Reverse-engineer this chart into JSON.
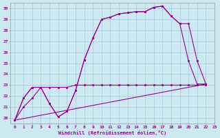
{
  "xlabel": "Windchill (Refroidissement éolien,°C)",
  "xlim": [
    -0.5,
    23
  ],
  "ylim": [
    19.5,
    30.5
  ],
  "xticks": [
    0,
    1,
    2,
    3,
    4,
    5,
    6,
    7,
    8,
    9,
    10,
    11,
    12,
    13,
    14,
    15,
    16,
    17,
    18,
    19,
    20,
    21,
    22,
    23
  ],
  "yticks": [
    20,
    21,
    22,
    23,
    24,
    25,
    26,
    27,
    28,
    29,
    30
  ],
  "background_color": "#cce8f0",
  "grid_color": "#aac8d8",
  "line_color": "#990099",
  "curve1_x": [
    0,
    1,
    2,
    3,
    4,
    5,
    6,
    7,
    8,
    9,
    10,
    11,
    12,
    13,
    14,
    15,
    16,
    17,
    18,
    19,
    20,
    21,
    22
  ],
  "curve1_y": [
    19.8,
    21.8,
    22.8,
    22.8,
    21.3,
    20.1,
    20.6,
    22.5,
    25.3,
    27.3,
    29.0,
    29.2,
    29.5,
    29.6,
    29.7,
    29.7,
    30.1,
    30.2,
    29.3,
    28.6,
    25.2,
    23.1,
    23.1
  ],
  "curve2_x": [
    0,
    1,
    2,
    3,
    4,
    5,
    6,
    7,
    8,
    9,
    10,
    11,
    12,
    13,
    14,
    15,
    16,
    17,
    18,
    19,
    20,
    21,
    22
  ],
  "curve2_y": [
    19.8,
    21.8,
    22.8,
    22.8,
    21.3,
    20.1,
    20.6,
    22.5,
    25.3,
    27.3,
    29.0,
    29.2,
    29.5,
    29.6,
    29.7,
    29.7,
    30.1,
    30.2,
    29.3,
    28.6,
    28.6,
    25.2,
    23.1
  ],
  "curve3_x": [
    0,
    1,
    2,
    3,
    4,
    5,
    6,
    7,
    8,
    9,
    10,
    11,
    12,
    13,
    14,
    15,
    16,
    17,
    18,
    19,
    20,
    21,
    22
  ],
  "curve3_y": [
    19.8,
    21.0,
    21.8,
    22.8,
    22.8,
    22.8,
    22.8,
    23.0,
    23.0,
    23.0,
    23.0,
    23.0,
    23.0,
    23.0,
    23.0,
    23.0,
    23.0,
    23.0,
    23.0,
    23.0,
    23.0,
    23.0,
    23.0
  ],
  "curve4_x": [
    0,
    22
  ],
  "curve4_y": [
    19.8,
    23.1
  ]
}
